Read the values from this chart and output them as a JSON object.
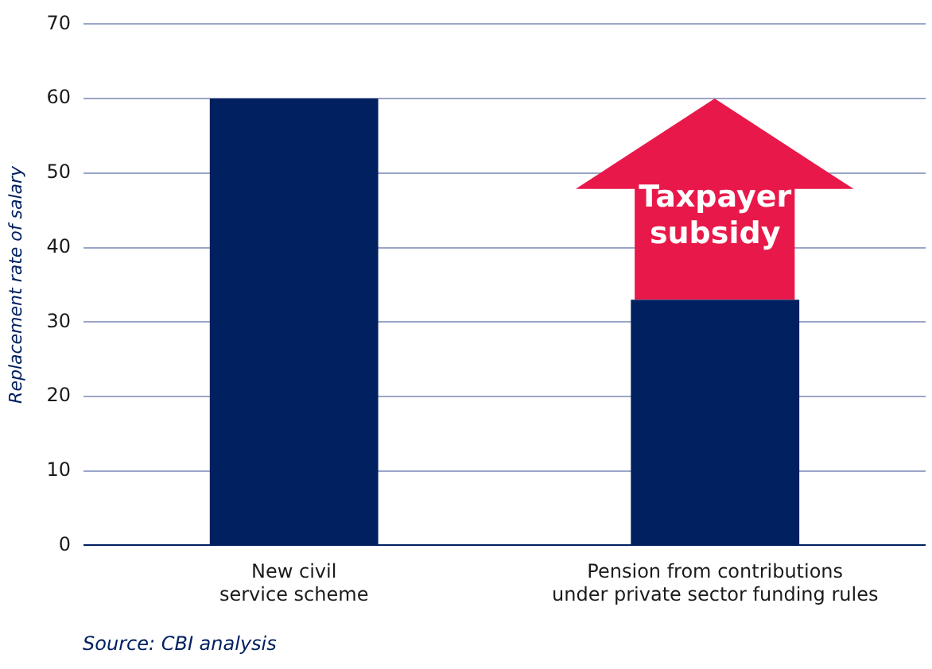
{
  "chart_data": {
    "type": "bar",
    "ylabel": "Replacement rate of salary",
    "categories": [
      "New civil\nservice scheme",
      "Pension from contributions\nunder private sector funding rules"
    ],
    "values": [
      60,
      33
    ],
    "color": "#002060",
    "ylim": [
      0,
      70
    ],
    "yticks": [
      0,
      10,
      20,
      30,
      40,
      50,
      60,
      70
    ],
    "grid": "y",
    "annotations": [
      "Taxpayer\nsubsidy",
      "Source: CBI analysis"
    ]
  }
}
